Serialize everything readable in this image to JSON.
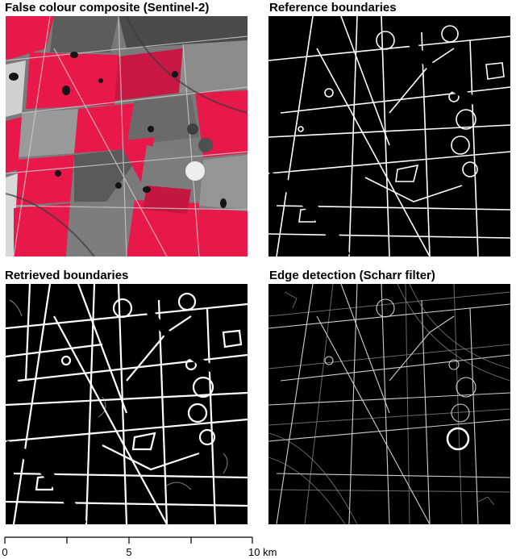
{
  "panels": [
    {
      "id": "false-colour",
      "title": "False colour composite (Sentinel-2)"
    },
    {
      "id": "reference",
      "title": "Reference boundaries"
    },
    {
      "id": "retrieved",
      "title": "Retrieved boundaries"
    },
    {
      "id": "edge",
      "title": "Edge detection (Scharr filter)"
    }
  ],
  "scale_bar": {
    "ticks": [
      "0",
      "5",
      "10 km"
    ],
    "max_km": 10
  },
  "colors": {
    "field_red": "#e8194a",
    "field_grey": "#8a8a8a",
    "boundary_white": "#ffffff",
    "background_black": "#000000"
  }
}
